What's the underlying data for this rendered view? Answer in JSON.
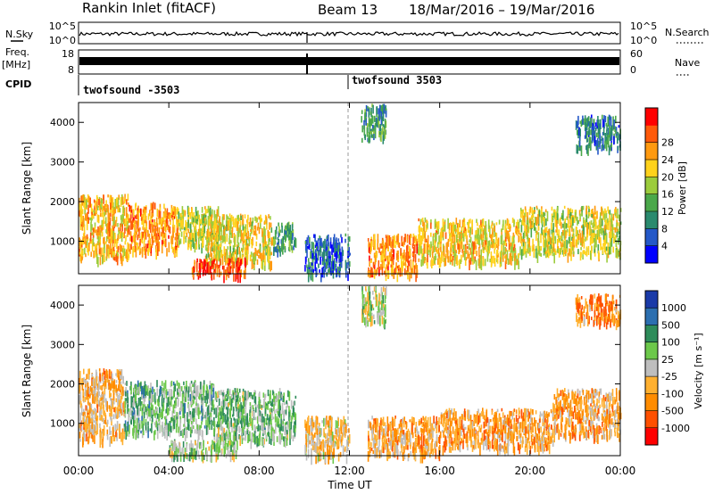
{
  "header": {
    "station": "Rankin Inlet (fitACF)",
    "beam": "Beam 13",
    "daterange": "18/Mar/2016 – 19/Mar/2016"
  },
  "strips": {
    "nsky_label": "N.Sky",
    "nsky_top": "10^5",
    "nsky_bot": "10^0",
    "nsearch_label": "N.Search",
    "nsearch_top": "10^5",
    "nsearch_bot": "10^0",
    "freq_label": "Freq.",
    "freq_unit": "[MHz]",
    "freq_top": "18",
    "freq_bot": "8",
    "nave_label": "Nave",
    "nave_top": "60",
    "nave_bot": "0",
    "cpid_label": "CPID",
    "cpid_left": "twofsound -3503",
    "cpid_right": "twofsound 3503"
  },
  "x_axis": {
    "label": "Time UT",
    "ticks": [
      "00:00",
      "04:00",
      "08:00",
      "12:00",
      "16:00",
      "20:00",
      "00:00"
    ]
  },
  "colors": {
    "power": [
      "#0000ff",
      "#2458c8",
      "#2a8a6e",
      "#4aa84a",
      "#9ccc3c",
      "#ffd21c",
      "#ff9a10",
      "#ff5a0a",
      "#ff0000"
    ],
    "velocity": [
      "#ff0000",
      "#ff5000",
      "#ff8c00",
      "#ffb030",
      "#bebebe",
      "#6cc84a",
      "#2e8c5a",
      "#2c6fb0",
      "#1a3aa8"
    ]
  },
  "chart_data": [
    {
      "type": "heatmap",
      "title": "",
      "xlabel": "Time UT",
      "ylabel": "Slant Range [km]",
      "xlim": [
        0,
        24
      ],
      "ylim": [
        180,
        4500
      ],
      "y_ticks": [
        "1000",
        "2000",
        "3000",
        "4000"
      ],
      "colorbar": {
        "label": "Power [dB]",
        "ticks": [
          "4",
          "8",
          "12",
          "16",
          "20",
          "24",
          "28"
        ],
        "range": [
          0,
          30
        ]
      },
      "regions": [
        {
          "t0": 0.0,
          "t1": 2.2,
          "r0": 600,
          "r1": 2200,
          "v": 20
        },
        {
          "t0": 2.2,
          "t1": 4.4,
          "r0": 800,
          "r1": 2000,
          "v": 22
        },
        {
          "t0": 4.4,
          "t1": 6.2,
          "r0": 900,
          "r1": 1900,
          "v": 16
        },
        {
          "t0": 5.6,
          "t1": 8.6,
          "r0": 500,
          "r1": 1700,
          "v": 18
        },
        {
          "t0": 8.6,
          "t1": 9.6,
          "r0": 800,
          "r1": 1500,
          "v": 10
        },
        {
          "t0": 5.0,
          "t1": 7.4,
          "r0": 180,
          "r1": 600,
          "v": 26
        },
        {
          "t0": 10.0,
          "t1": 12.0,
          "r0": 180,
          "r1": 1200,
          "v": 6
        },
        {
          "t0": 12.8,
          "t1": 15.0,
          "r0": 200,
          "r1": 1200,
          "v": 22
        },
        {
          "t0": 15.0,
          "t1": 19.5,
          "r0": 500,
          "r1": 1600,
          "v": 19
        },
        {
          "t0": 19.5,
          "t1": 24.0,
          "r0": 700,
          "r1": 1900,
          "v": 17
        },
        {
          "t0": 12.5,
          "t1": 13.6,
          "r0": 3600,
          "r1": 4500,
          "v": 10
        },
        {
          "t0": 22.0,
          "t1": 24.0,
          "r0": 3400,
          "r1": 4200,
          "v": 8
        }
      ]
    },
    {
      "type": "heatmap",
      "title": "",
      "xlabel": "Time UT",
      "ylabel": "Slant Range [km]",
      "xlim": [
        0,
        24
      ],
      "ylim": [
        180,
        4500
      ],
      "y_ticks": [
        "1000",
        "2000",
        "3000",
        "4000"
      ],
      "colorbar": {
        "label": "Velocity [m s⁻¹]",
        "ticks": [
          "-1000",
          "-500",
          "-100",
          "-25",
          "25",
          "100",
          "500",
          "1000"
        ],
        "range": [
          -1200,
          1200
        ]
      },
      "regions": [
        {
          "t0": 0.0,
          "t1": 2.0,
          "r0": 600,
          "r1": 2400,
          "v": -300
        },
        {
          "t0": 2.0,
          "t1": 6.0,
          "r0": 800,
          "r1": 2100,
          "v": 300
        },
        {
          "t0": 6.0,
          "t1": 9.6,
          "r0": 600,
          "r1": 1900,
          "v": 250
        },
        {
          "t0": 4.0,
          "t1": 7.0,
          "r0": 180,
          "r1": 600,
          "v": 150
        },
        {
          "t0": 10.0,
          "t1": 12.0,
          "r0": 180,
          "r1": 1200,
          "v": -200
        },
        {
          "t0": 12.8,
          "t1": 16.0,
          "r0": 200,
          "r1": 1200,
          "v": -400
        },
        {
          "t0": 16.0,
          "t1": 21.0,
          "r0": 400,
          "r1": 1400,
          "v": -400
        },
        {
          "t0": 21.0,
          "t1": 24.0,
          "r0": 700,
          "r1": 1900,
          "v": -350
        },
        {
          "t0": 12.5,
          "t1": 13.6,
          "r0": 3600,
          "r1": 4500,
          "v": 20
        },
        {
          "t0": 22.0,
          "t1": 24.0,
          "r0": 3600,
          "r1": 4300,
          "v": -500
        }
      ]
    }
  ]
}
